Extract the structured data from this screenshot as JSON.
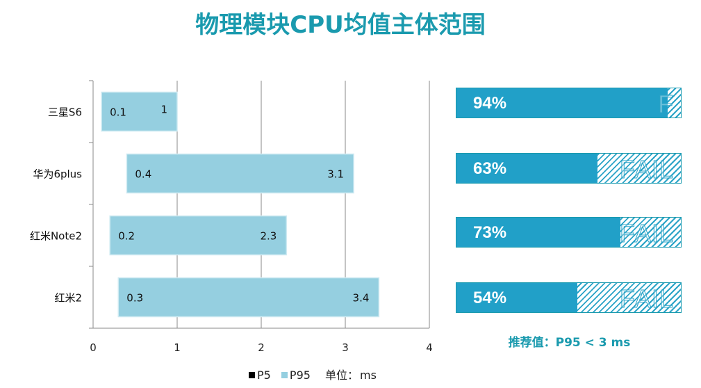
{
  "title": "物理模块CPU均值主体范围",
  "chart_data": {
    "type": "bar",
    "orientation": "horizontal-floating",
    "categories": [
      "三星S6",
      "华为6plus",
      "红米Note2",
      "红米2"
    ],
    "series": [
      {
        "name": "P5",
        "values": [
          0.1,
          0.4,
          0.2,
          0.3
        ],
        "color": "#000000"
      },
      {
        "name": "P95",
        "values": [
          1,
          3.1,
          2.3,
          3.4
        ],
        "color": "#95cfe0"
      }
    ],
    "xlim": [
      0,
      4
    ],
    "xticks": [
      "0",
      "1",
      "2",
      "3",
      "4"
    ],
    "grid": true,
    "legend": "bottom",
    "unit_label": "单位：",
    "unit": "ms"
  },
  "pass_bars": [
    {
      "percent": 94,
      "label": "94%",
      "fail_text": "F"
    },
    {
      "percent": 63,
      "label": "63%",
      "fail_text": "FAIL"
    },
    {
      "percent": 73,
      "label": "73%",
      "fail_text": "FAIL"
    },
    {
      "percent": 54,
      "label": "54%",
      "fail_text": "FAIL"
    }
  ],
  "recommendation": "推荐值：P95 < 3 ms",
  "colors": {
    "accent": "#1a9aae",
    "bar_fill": "#95cfe0",
    "pass_fill": "#21a0c8"
  }
}
